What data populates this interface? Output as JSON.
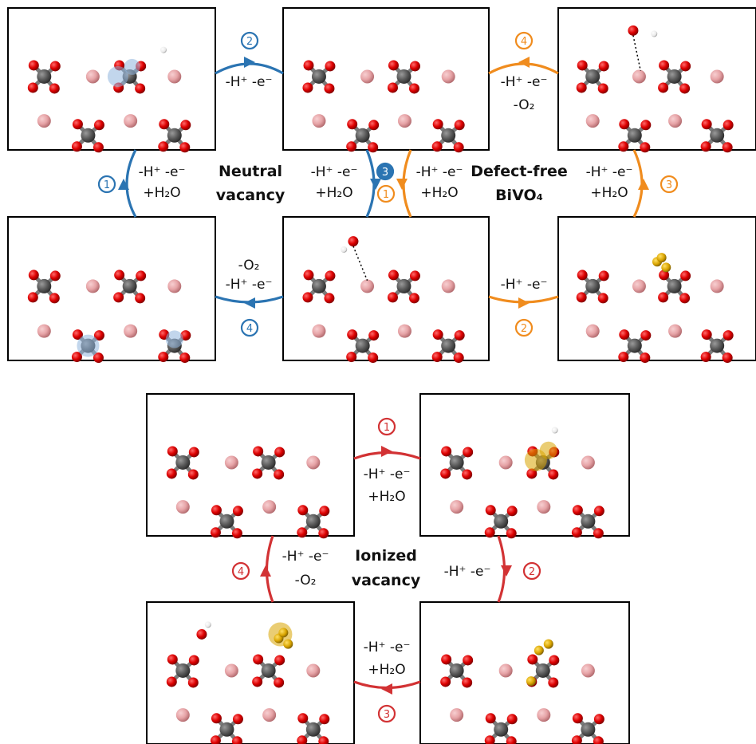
{
  "colors": {
    "blue": "#2b74b2",
    "orange": "#f08c1e",
    "red": "#d23234",
    "oxygen": "#dd0000",
    "vanadium": "#5a5a5a",
    "bismuth": "#e6a3a6",
    "hydrogen": "#ffffff",
    "polaron_blue": "#8fb4dc",
    "polaron_gold": "#d9a400"
  },
  "cycles": {
    "neutral": {
      "name_line1": "Neutral",
      "name_line2": "vacancy",
      "steps": [
        {
          "number": "1",
          "line1": "-H⁺ -e⁻",
          "line2": "+H₂O"
        },
        {
          "number": "2",
          "line1": "-H⁺ -e⁻",
          "line2": ""
        },
        {
          "number": "3",
          "line1": "-H⁺ -e⁻",
          "line2": "+H₂O"
        },
        {
          "number": "4",
          "line1": "-O₂",
          "line2": "-H⁺ -e⁻"
        }
      ]
    },
    "defect_free": {
      "name_line1": "Defect-free",
      "name_line2": "BiVO₄",
      "steps": [
        {
          "number": "1",
          "line1": "-H⁺ -e⁻",
          "line2": "+H₂O"
        },
        {
          "number": "2",
          "line1": "-H⁺ -e⁻",
          "line2": ""
        },
        {
          "number": "3",
          "line1": "-H⁺ -e⁻",
          "line2": "+H₂O"
        },
        {
          "number": "4",
          "line1": "-H⁺ -e⁻",
          "line2": "-O₂"
        }
      ]
    },
    "ionized": {
      "name_line1": "Ionized",
      "name_line2": "vacancy",
      "steps": [
        {
          "number": "1",
          "line1": "-H⁺ -e⁻",
          "line2": "+H₂O"
        },
        {
          "number": "2",
          "line1": "-H⁺ -e⁻",
          "line2": ""
        },
        {
          "number": "3",
          "line1": "-H⁺ -e⁻",
          "line2": "+H₂O"
        },
        {
          "number": "4",
          "line1": "-H⁺ -e⁻",
          "line2": "-O₂"
        }
      ]
    }
  }
}
